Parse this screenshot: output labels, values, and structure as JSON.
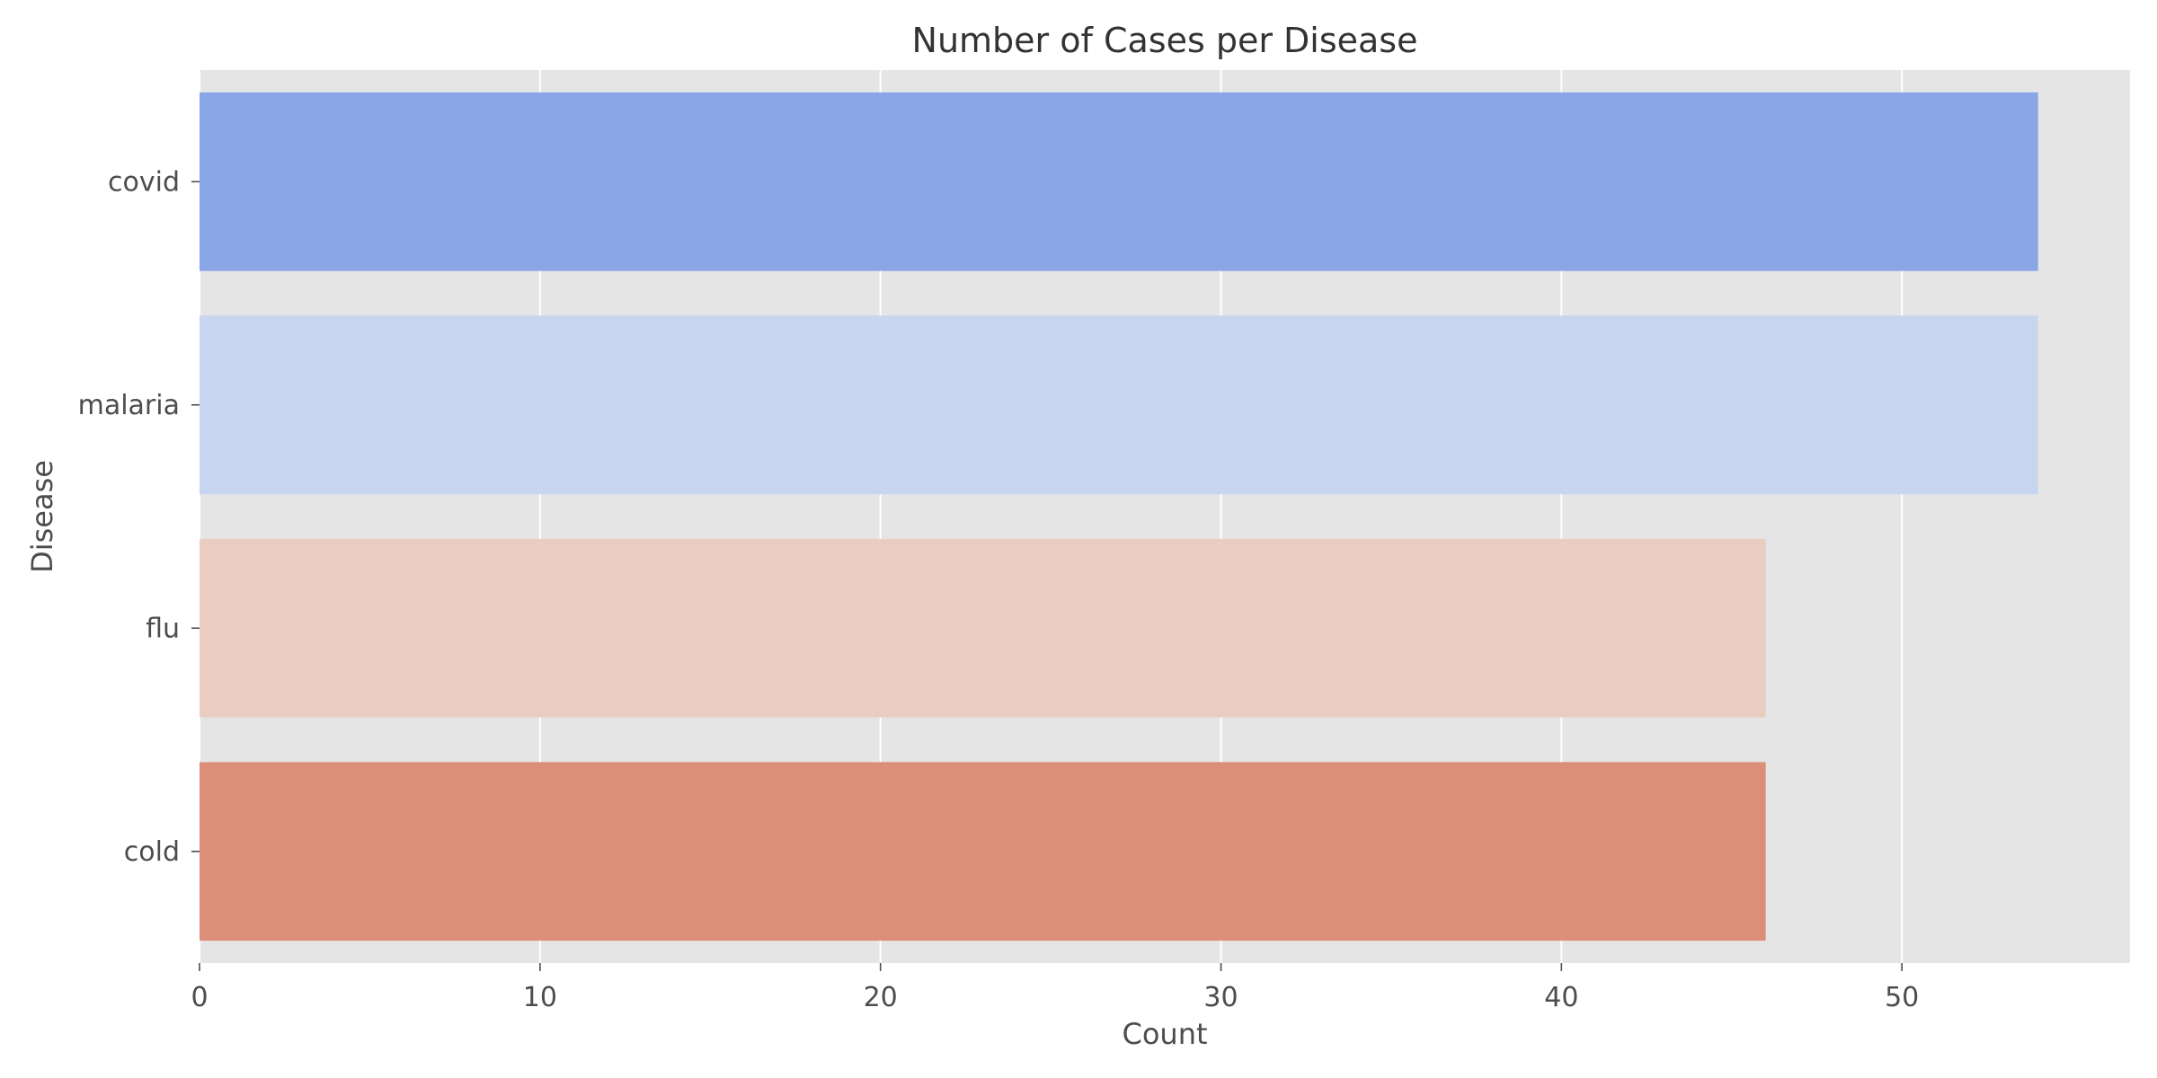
{
  "chart_data": {
    "type": "bar",
    "orientation": "horizontal",
    "title": "Number of Cases per Disease",
    "xlabel": "Count",
    "ylabel": "Disease",
    "categories": [
      "covid",
      "malaria",
      "flu",
      "cold"
    ],
    "values": [
      54,
      54,
      46,
      46
    ],
    "colors": [
      "#8aa6e7",
      "#c7d5ee",
      "#e9cdc0",
      "#dc8e79"
    ],
    "xlim": [
      0,
      56.7
    ],
    "xticks": [
      0,
      10,
      20,
      30,
      40,
      50
    ],
    "grid": true,
    "legend": "none"
  },
  "style": {
    "plot_background": "#e5e5e5",
    "grid_color": "#ffffff",
    "text_color": "#4d4d4d"
  }
}
